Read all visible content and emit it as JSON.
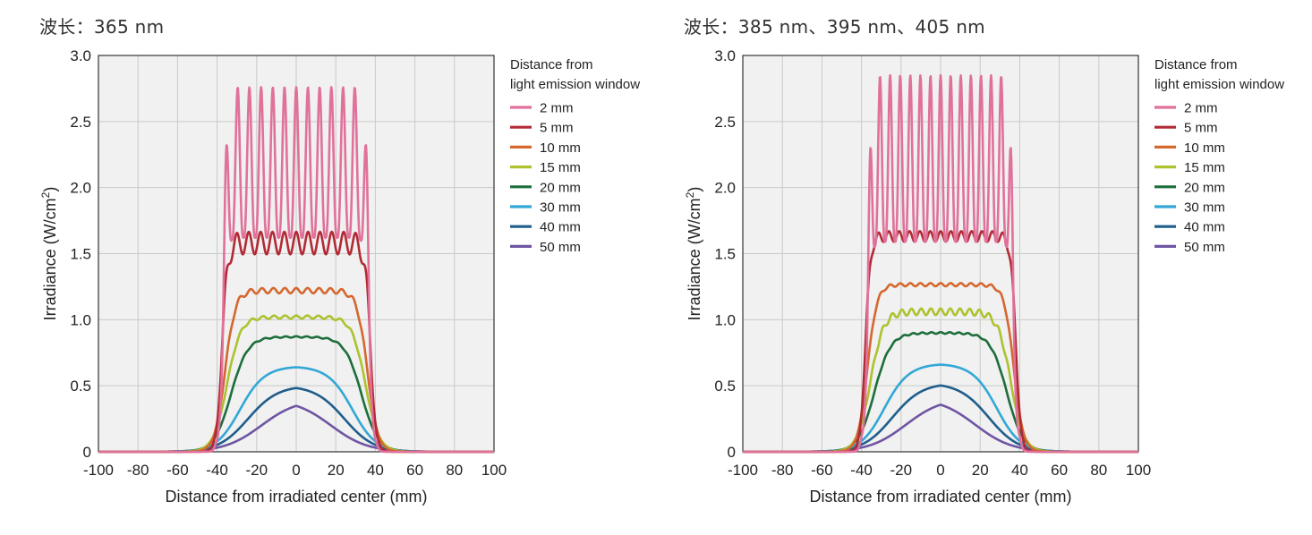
{
  "chart_data": [
    {
      "type": "line",
      "title": "波长：365 nm",
      "xlabel": "Distance from irradiated center (mm)",
      "ylabel": "Irradiance (W/cm²)",
      "ylabel_main": "Irradiance (W/cm",
      "ylabel_sup": "2",
      "ylabel_end": ")",
      "xlim": [
        -100,
        100
      ],
      "ylim": [
        0,
        3.0
      ],
      "xticks": [
        -100,
        -80,
        -60,
        -40,
        -20,
        0,
        20,
        40,
        60,
        80,
        100
      ],
      "yticks": [
        {
          "value": 0,
          "label": "0"
        },
        {
          "value": 0.5,
          "label": "0.5"
        },
        {
          "value": 1.0,
          "label": "1.0"
        },
        {
          "value": 1.5,
          "label": "1.5"
        },
        {
          "value": 2.0,
          "label": "2.0"
        },
        {
          "value": 2.5,
          "label": "2.5"
        },
        {
          "value": 3.0,
          "label": "3.0"
        }
      ],
      "grid": true,
      "legend_position": "right",
      "legend_title": [
        "Distance from",
        "light emission window"
      ],
      "series": [
        {
          "name": "2 mm",
          "color": "#e0719b",
          "plateau": 2.0,
          "ripple_amp": 0.38,
          "ripple_n": 13,
          "ripple_from": 1.62,
          "edge": 37,
          "soft": 1.0
        },
        {
          "name": "5 mm",
          "color": "#b22a35",
          "plateau": 1.58,
          "ripple_amp": 0.085,
          "ripple_n": 13,
          "edge": 37.5,
          "soft": 1.4
        },
        {
          "name": "10 mm",
          "color": "#d5672f",
          "plateau": 1.22,
          "ripple_amp": 0.02,
          "ripple_n": 13,
          "edge": 36,
          "soft": 2.6
        },
        {
          "name": "15 mm",
          "color": "#aec12e",
          "plateau": 1.02,
          "ripple_amp": 0.012,
          "ripple_n": 13,
          "edge": 35,
          "soft": 3.4
        },
        {
          "name": "20 mm",
          "color": "#1d6e3b",
          "plateau": 0.87,
          "ripple_amp": 0.005,
          "ripple_n": 13,
          "edge": 33,
          "soft": 4.2
        },
        {
          "name": "30 mm",
          "color": "#32a7d6",
          "plateau": 0.645,
          "ripple_amp": 0.0,
          "ripple_n": 0,
          "edge": 29,
          "soft": 6.0
        },
        {
          "name": "40 mm",
          "color": "#1f5d8c",
          "plateau": 0.5,
          "ripple_amp": 0.0,
          "ripple_n": 0,
          "edge": 25,
          "soft": 7.5
        },
        {
          "name": "50 mm",
          "color": "#6f55a3",
          "plateau": 0.4,
          "ripple_amp": 0.0,
          "ripple_n": 0,
          "edge": 18,
          "soft": 9.5
        }
      ]
    },
    {
      "type": "line",
      "title": "波长：385 nm、395 nm、405 nm",
      "xlabel": "Distance from irradiated center (mm)",
      "ylabel": "Irradiance (W/cm²)",
      "ylabel_main": "Irradiance (W/cm",
      "ylabel_sup": "2",
      "ylabel_end": ")",
      "xlim": [
        -100,
        100
      ],
      "ylim": [
        0,
        3.0
      ],
      "xticks": [
        -100,
        -80,
        -60,
        -40,
        -20,
        0,
        20,
        40,
        60,
        80,
        100
      ],
      "yticks": [
        {
          "value": 0,
          "label": "0"
        },
        {
          "value": 0.5,
          "label": "0.5"
        },
        {
          "value": 1.0,
          "label": "1.0"
        },
        {
          "value": 1.5,
          "label": "1.5"
        },
        {
          "value": 2.0,
          "label": "2.0"
        },
        {
          "value": 2.5,
          "label": "2.5"
        },
        {
          "value": 3.0,
          "label": "3.0"
        }
      ],
      "grid": true,
      "legend_position": "right",
      "legend_title": [
        "Distance from",
        "light emission window"
      ],
      "series": [
        {
          "name": "2 mm",
          "color": "#e0719b",
          "plateau": 2.01,
          "ripple_amp": 0.42,
          "ripple_n": 15,
          "ripple_from": 1.59,
          "edge": 37,
          "soft": 1.0
        },
        {
          "name": "5 mm",
          "color": "#b22a35",
          "plateau": 1.63,
          "ripple_amp": 0.04,
          "ripple_n": 15,
          "edge": 38,
          "soft": 1.3
        },
        {
          "name": "10 mm",
          "color": "#d5672f",
          "plateau": 1.265,
          "ripple_amp": 0.012,
          "ripple_n": 15,
          "edge": 37,
          "soft": 2.4
        },
        {
          "name": "15 mm",
          "color": "#aec12e",
          "plateau": 1.06,
          "ripple_amp": 0.025,
          "ripple_n": 15,
          "edge": 35.5,
          "soft": 3.3
        },
        {
          "name": "20 mm",
          "color": "#1d6e3b",
          "plateau": 0.9,
          "ripple_amp": 0.006,
          "ripple_n": 15,
          "edge": 33.5,
          "soft": 4.1
        },
        {
          "name": "30 mm",
          "color": "#32a7d6",
          "plateau": 0.665,
          "ripple_amp": 0.0,
          "ripple_n": 0,
          "edge": 29,
          "soft": 6.0
        },
        {
          "name": "40 mm",
          "color": "#1f5d8c",
          "plateau": 0.52,
          "ripple_amp": 0.0,
          "ripple_n": 0,
          "edge": 25,
          "soft": 7.5
        },
        {
          "name": "50 mm",
          "color": "#6f55a3",
          "plateau": 0.41,
          "ripple_amp": 0.0,
          "ripple_n": 0,
          "edge": 18,
          "soft": 9.5
        }
      ]
    }
  ]
}
